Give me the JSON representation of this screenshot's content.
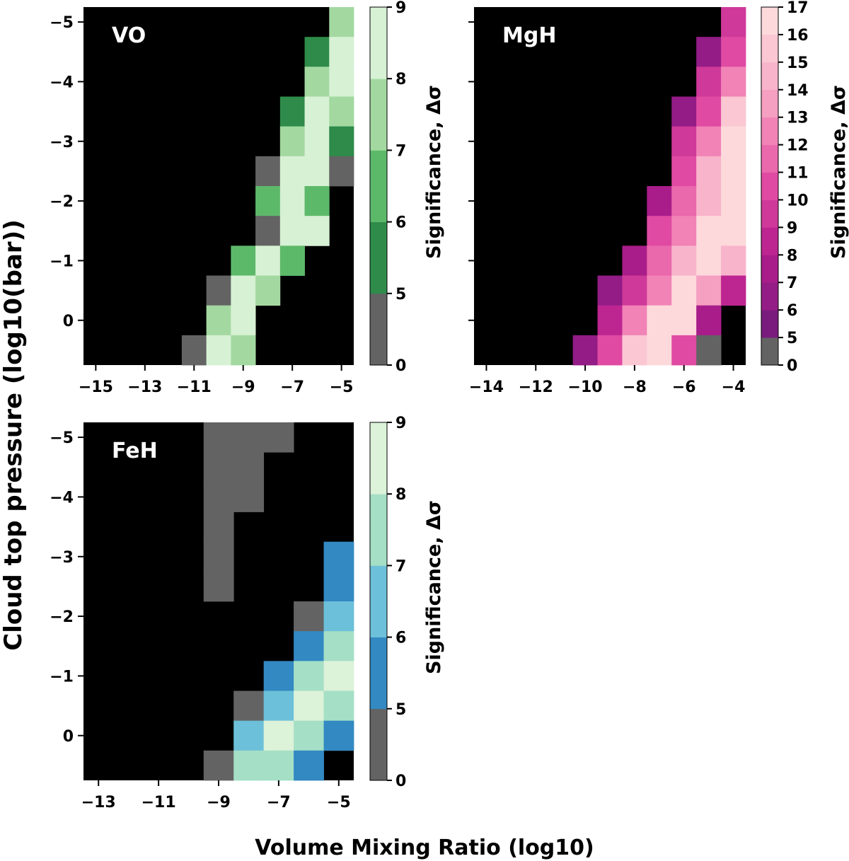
{
  "figure": {
    "ylabel": "Cloud top pressure (log10(bar))",
    "xlabel": "Volume Mixing Ratio (log10)",
    "colorbar_label": "Significance, Δσ"
  },
  "chart_data": [
    {
      "type": "heatmap",
      "panel": "VO",
      "title": "VO",
      "xlim": [
        -15.5,
        -4.5
      ],
      "ylim": [
        0.75,
        -5.25
      ],
      "x_ticks": [
        -15,
        -13,
        -11,
        -9,
        -7,
        -5
      ],
      "x_tick_labels": [
        "−15",
        "−13",
        "−11",
        "−9",
        "−7",
        "−5"
      ],
      "y_ticks": [
        -5,
        -4,
        -3,
        -2,
        -1,
        0
      ],
      "y_tick_labels": [
        "−5",
        "−4",
        "−3",
        "−2",
        "−1",
        "0"
      ],
      "x_centers": [
        -15,
        -14,
        -13,
        -12,
        -11,
        -10,
        -9,
        -8,
        -7,
        -6,
        -5
      ],
      "y_centers": [
        -5,
        -4.5,
        -4,
        -3.5,
        -3,
        -2.5,
        -2,
        -1.5,
        -1,
        -0.5,
        0,
        0.5
      ],
      "values": [
        [
          0,
          0,
          0,
          0,
          0,
          0,
          0,
          0,
          0,
          0,
          7.5
        ],
        [
          0,
          0,
          0,
          0,
          0,
          0,
          0,
          0,
          0,
          5.5,
          8.5
        ],
        [
          0,
          0,
          0,
          0,
          0,
          0,
          0,
          0,
          0,
          7.5,
          8.5
        ],
        [
          0,
          0,
          0,
          0,
          0,
          0,
          0,
          0,
          5.5,
          8.5,
          7.5
        ],
        [
          0,
          0,
          0,
          0,
          0,
          0,
          0,
          0,
          7.5,
          8.5,
          5.5
        ],
        [
          0,
          0,
          0,
          0,
          0,
          0,
          0,
          2.5,
          8.5,
          8.5,
          2.5
        ],
        [
          0,
          0,
          0,
          0,
          0,
          0,
          0,
          6.5,
          8.5,
          6.5,
          0
        ],
        [
          0,
          0,
          0,
          0,
          0,
          0,
          0,
          2.5,
          8.5,
          8.5,
          0
        ],
        [
          0,
          0,
          0,
          0,
          0,
          0,
          6.5,
          8.5,
          6.5,
          0,
          0
        ],
        [
          0,
          0,
          0,
          0,
          0,
          2.5,
          8.5,
          7.5,
          0,
          0,
          0
        ],
        [
          0,
          0,
          0,
          0,
          0,
          7.5,
          8.5,
          0,
          0,
          0,
          0
        ],
        [
          0,
          0,
          0,
          0,
          2.5,
          8.5,
          7.5,
          0,
          0,
          0,
          0
        ]
      ],
      "colorbar": {
        "bounds": [
          0,
          5,
          6,
          7,
          8,
          9
        ],
        "colors": [
          "#636363",
          "#2e8b4a",
          "#5db96a",
          "#a3d9a0",
          "#d7f1d4"
        ],
        "tick_labels": [
          "0",
          "5",
          "6",
          "7",
          "8",
          "9"
        ]
      }
    },
    {
      "type": "heatmap",
      "panel": "MgH",
      "title": "MgH",
      "xlim": [
        -14.5,
        -3.5
      ],
      "ylim": [
        0.75,
        -5.25
      ],
      "x_ticks": [
        -14,
        -12,
        -10,
        -8,
        -6,
        -4
      ],
      "x_tick_labels": [
        "−14",
        "−12",
        "−10",
        "−8",
        "−6",
        "−4"
      ],
      "y_ticks": [
        -5,
        -4,
        -3,
        -2,
        -1,
        0
      ],
      "y_tick_labels": [
        "",
        "",
        "",
        "",
        "",
        ""
      ],
      "x_centers": [
        -14,
        -13,
        -12,
        -11,
        -10,
        -9,
        -8,
        -7,
        -6,
        -5,
        -4
      ],
      "y_centers": [
        -5,
        -4.5,
        -4,
        -3.5,
        -3,
        -2.5,
        -2,
        -1.5,
        -1,
        -0.5,
        0,
        0.5
      ],
      "values": [
        [
          0,
          0,
          0,
          0,
          0,
          0,
          0,
          0,
          0,
          0,
          9.5
        ],
        [
          0,
          0,
          0,
          0,
          0,
          0,
          0,
          0,
          0,
          6.5,
          10.5
        ],
        [
          0,
          0,
          0,
          0,
          0,
          0,
          0,
          0,
          0,
          9.5,
          12.5
        ],
        [
          0,
          0,
          0,
          0,
          0,
          0,
          0,
          0,
          6.5,
          10.5,
          15.5
        ],
        [
          0,
          0,
          0,
          0,
          0,
          0,
          0,
          0,
          9.5,
          12.5,
          16.5
        ],
        [
          0,
          0,
          0,
          0,
          0,
          0,
          0,
          0,
          10.5,
          14.5,
          16.5
        ],
        [
          0,
          0,
          0,
          0,
          0,
          0,
          0,
          7.5,
          11.5,
          14.5,
          17
        ],
        [
          0,
          0,
          0,
          0,
          0,
          0,
          0,
          10.5,
          12.5,
          16.5,
          16.5
        ],
        [
          0,
          0,
          0,
          0,
          0,
          0,
          7.5,
          11.5,
          14.5,
          16.5,
          14.5
        ],
        [
          0,
          0,
          0,
          0,
          0,
          6.5,
          9.5,
          12.5,
          16.5,
          13.5,
          8.5
        ],
        [
          0,
          0,
          0,
          0,
          0,
          8.5,
          12.5,
          16.5,
          16.5,
          7.5,
          0
        ],
        [
          0,
          0,
          0,
          0,
          6.5,
          10.5,
          15.5,
          16.5,
          10.5,
          2.5,
          0
        ]
      ],
      "colorbar": {
        "bounds": [
          0,
          5,
          6,
          7,
          8,
          9,
          10,
          11,
          12,
          13,
          14,
          15,
          16,
          17
        ],
        "colors": [
          "#636363",
          "#7a1c7e",
          "#931c86",
          "#a91d8a",
          "#bd2591",
          "#cf3999",
          "#e04aa3",
          "#ea68ac",
          "#f183b6",
          "#f59fc1",
          "#f8b4ca",
          "#fac7d3",
          "#fdd9db"
        ],
        "tick_labels": [
          "0",
          "5",
          "6",
          "7",
          "8",
          "9",
          "10",
          "11",
          "12",
          "13",
          "14",
          "15",
          "16",
          "17"
        ]
      }
    },
    {
      "type": "heatmap",
      "panel": "FeH",
      "title": "FeH",
      "xlim": [
        -13.5,
        -4.5
      ],
      "ylim": [
        0.75,
        -5.25
      ],
      "x_ticks": [
        -13,
        -11,
        -9,
        -7,
        -5
      ],
      "x_tick_labels": [
        "−13",
        "−11",
        "−9",
        "−7",
        "−5"
      ],
      "y_ticks": [
        -5,
        -4,
        -3,
        -2,
        -1,
        0
      ],
      "y_tick_labels": [
        "−5",
        "−4",
        "−3",
        "−2",
        "−1",
        "0"
      ],
      "x_centers": [
        -13,
        -12,
        -11,
        -10,
        -9,
        -8,
        -7,
        -6,
        -5
      ],
      "y_centers": [
        -5,
        -4.5,
        -4,
        -3.5,
        -3,
        -2.5,
        -2,
        -1.5,
        -1,
        -0.5,
        0,
        0.5
      ],
      "values": [
        [
          0,
          0,
          0,
          0,
          2.5,
          2.5,
          2.5,
          0,
          0
        ],
        [
          0,
          0,
          0,
          0,
          2.5,
          2.5,
          0,
          0,
          0
        ],
        [
          0,
          0,
          0,
          0,
          2.5,
          2.5,
          0,
          0,
          0
        ],
        [
          0,
          0,
          0,
          0,
          2.5,
          0,
          0,
          0,
          0
        ],
        [
          0,
          0,
          0,
          0,
          2.5,
          0,
          0,
          0,
          5.5
        ],
        [
          0,
          0,
          0,
          0,
          2.5,
          0,
          0,
          0,
          5.5
        ],
        [
          0,
          0,
          0,
          0,
          0,
          0,
          0,
          2.5,
          6.5
        ],
        [
          0,
          0,
          0,
          0,
          0,
          0,
          0,
          5.5,
          7.5
        ],
        [
          0,
          0,
          0,
          0,
          0,
          0,
          5.5,
          7.5,
          8.5
        ],
        [
          0,
          0,
          0,
          0,
          0,
          2.5,
          6.5,
          8.5,
          7.5
        ],
        [
          0,
          0,
          0,
          0,
          0,
          6.5,
          8.5,
          7.5,
          5.5
        ],
        [
          0,
          0,
          0,
          0,
          2.5,
          7.5,
          7.5,
          5.5,
          0
        ]
      ],
      "colorbar": {
        "bounds": [
          0,
          5,
          6,
          7,
          8,
          9
        ],
        "colors": [
          "#636363",
          "#3389c2",
          "#6cc0d9",
          "#a5dfc6",
          "#dcf2d9"
        ],
        "tick_labels": [
          "0",
          "5",
          "6",
          "7",
          "8",
          "9"
        ]
      }
    }
  ]
}
